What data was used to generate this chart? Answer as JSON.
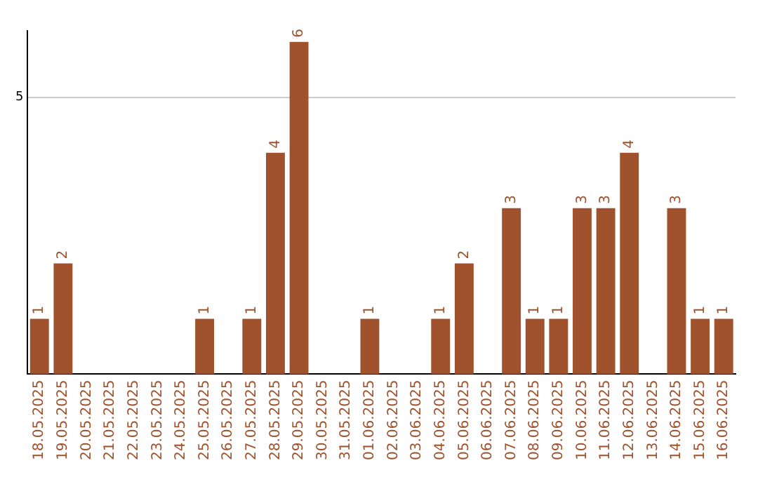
{
  "chart_data": {
    "type": "bar",
    "categories": [
      "18.05.2025",
      "19.05.2025",
      "20.05.2025",
      "21.05.2025",
      "22.05.2025",
      "23.05.2025",
      "24.05.2025",
      "25.05.2025",
      "26.05.2025",
      "27.05.2025",
      "28.05.2025",
      "29.05.2025",
      "30.05.2025",
      "31.05.2025",
      "01.06.2025",
      "02.06.2025",
      "03.06.2025",
      "04.06.2025",
      "05.06.2025",
      "06.06.2025",
      "07.06.2025",
      "08.06.2025",
      "09.06.2025",
      "10.06.2025",
      "11.06.2025",
      "12.06.2025",
      "13.06.2025",
      "14.06.2025",
      "15.06.2025",
      "16.06.2025"
    ],
    "values": [
      1,
      2,
      0,
      0,
      0,
      0,
      0,
      1,
      0,
      1,
      4,
      6,
      0,
      0,
      1,
      0,
      0,
      1,
      2,
      0,
      3,
      1,
      1,
      3,
      3,
      4,
      0,
      3,
      1,
      1
    ],
    "value_labels": [
      "1",
      "2",
      null,
      null,
      null,
      null,
      null,
      "1",
      null,
      "1",
      "4",
      "6",
      null,
      null,
      "1",
      null,
      null,
      "1",
      "2",
      null,
      "3",
      "1",
      "1",
      "3",
      "3",
      "4",
      null,
      "3",
      "1",
      "1"
    ],
    "color": "#a0522d",
    "ylim": [
      0,
      6.2
    ],
    "yticks": [
      5
    ],
    "grid": "y",
    "legend": false
  }
}
